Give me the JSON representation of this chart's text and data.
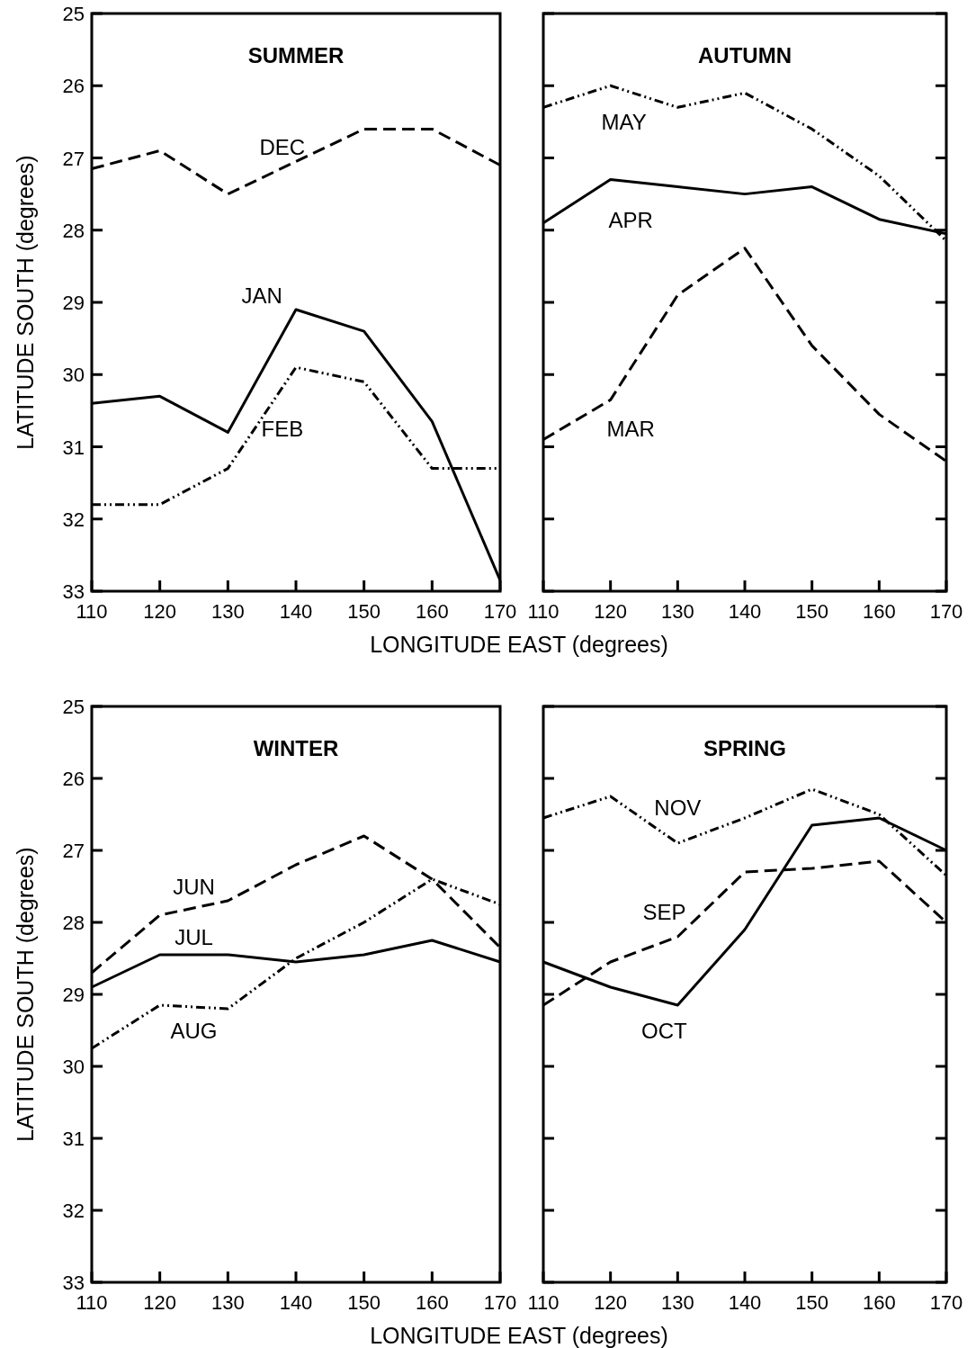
{
  "chart_data": [
    {
      "type": "line",
      "title": "SUMMER",
      "xlabel": "LONGITUDE EAST (degrees)",
      "ylabel": "LATITUDE SOUTH (degrees)",
      "x": [
        110,
        120,
        130,
        140,
        150,
        160,
        170
      ],
      "xlim": [
        110,
        170
      ],
      "xticks": [
        110,
        120,
        130,
        140,
        150,
        160,
        170
      ],
      "ylim": [
        33,
        25
      ],
      "yticks": [
        25,
        26,
        27,
        28,
        29,
        30,
        31,
        32,
        33
      ],
      "marker": "none",
      "series": [
        {
          "name": "DEC",
          "color": "#000000",
          "line_style": "dashed",
          "values": [
            27.15,
            26.9,
            27.5,
            27.05,
            26.6,
            26.6,
            27.1
          ]
        },
        {
          "name": "JAN",
          "color": "#000000",
          "line_style": "solid",
          "values": [
            30.4,
            30.3,
            30.8,
            29.1,
            29.4,
            30.65,
            32.85
          ]
        },
        {
          "name": "FEB",
          "color": "#000000",
          "line_style": "dotted",
          "values": [
            31.8,
            31.8,
            31.3,
            29.9,
            30.1,
            31.3,
            31.3
          ]
        }
      ]
    },
    {
      "type": "line",
      "title": "AUTUMN",
      "x": [
        110,
        120,
        130,
        140,
        150,
        160,
        170
      ],
      "xlim": [
        110,
        170
      ],
      "xticks": [
        110,
        120,
        130,
        140,
        150,
        160,
        170
      ],
      "ylim": [
        33,
        25
      ],
      "yticks": [
        25,
        26,
        27,
        28,
        29,
        30,
        31,
        32,
        33
      ],
      "tick_labels": "x",
      "marker": "none",
      "series": [
        {
          "name": "MAY",
          "color": "#000000",
          "line_style": "dotted",
          "values": [
            26.3,
            26.0,
            26.3,
            26.1,
            26.6,
            27.25,
            28.15
          ]
        },
        {
          "name": "APR",
          "color": "#000000",
          "line_style": "solid",
          "values": [
            27.9,
            27.3,
            27.4,
            27.5,
            27.4,
            27.85,
            28.05
          ]
        },
        {
          "name": "MAR",
          "color": "#000000",
          "line_style": "dashed",
          "values": [
            30.9,
            30.35,
            28.9,
            28.25,
            29.6,
            30.55,
            31.2
          ]
        }
      ]
    },
    {
      "type": "line",
      "title": "WINTER",
      "xlabel": "LONGITUDE EAST (degrees)",
      "ylabel": "LATITUDE SOUTH (degrees)",
      "x": [
        110,
        120,
        130,
        140,
        150,
        160,
        170
      ],
      "xlim": [
        110,
        170
      ],
      "xticks": [
        110,
        120,
        130,
        140,
        150,
        160,
        170
      ],
      "ylim": [
        33,
        25
      ],
      "yticks": [
        25,
        26,
        27,
        28,
        29,
        30,
        31,
        32,
        33
      ],
      "marker": "none",
      "series": [
        {
          "name": "JUN",
          "color": "#000000",
          "line_style": "dashed",
          "values": [
            28.7,
            27.9,
            27.7,
            27.2,
            26.8,
            27.4,
            28.35
          ]
        },
        {
          "name": "JUL",
          "color": "#000000",
          "line_style": "solid",
          "values": [
            28.9,
            28.45,
            28.45,
            28.55,
            28.45,
            28.25,
            28.55
          ]
        },
        {
          "name": "AUG",
          "color": "#000000",
          "line_style": "dotted",
          "values": [
            29.75,
            29.15,
            29.2,
            28.5,
            28.0,
            27.4,
            27.75
          ]
        }
      ]
    },
    {
      "type": "line",
      "title": "SPRING",
      "x": [
        110,
        120,
        130,
        140,
        150,
        160,
        170
      ],
      "xlim": [
        110,
        170
      ],
      "xticks": [
        110,
        120,
        130,
        140,
        150,
        160,
        170
      ],
      "ylim": [
        33,
        25
      ],
      "yticks": [
        25,
        26,
        27,
        28,
        29,
        30,
        31,
        32,
        33
      ],
      "tick_labels": "x",
      "marker": "none",
      "series": [
        {
          "name": "NOV",
          "color": "#000000",
          "line_style": "dotted",
          "values": [
            26.55,
            26.25,
            26.9,
            26.55,
            26.15,
            26.5,
            27.35
          ]
        },
        {
          "name": "SEP",
          "color": "#000000",
          "line_style": "dashed",
          "values": [
            29.15,
            28.55,
            28.2,
            27.3,
            27.25,
            27.15,
            28.0
          ]
        },
        {
          "name": "OCT",
          "color": "#000000",
          "line_style": "solid",
          "values": [
            28.55,
            28.9,
            29.15,
            28.1,
            26.65,
            26.55,
            27.0
          ]
        }
      ]
    }
  ]
}
